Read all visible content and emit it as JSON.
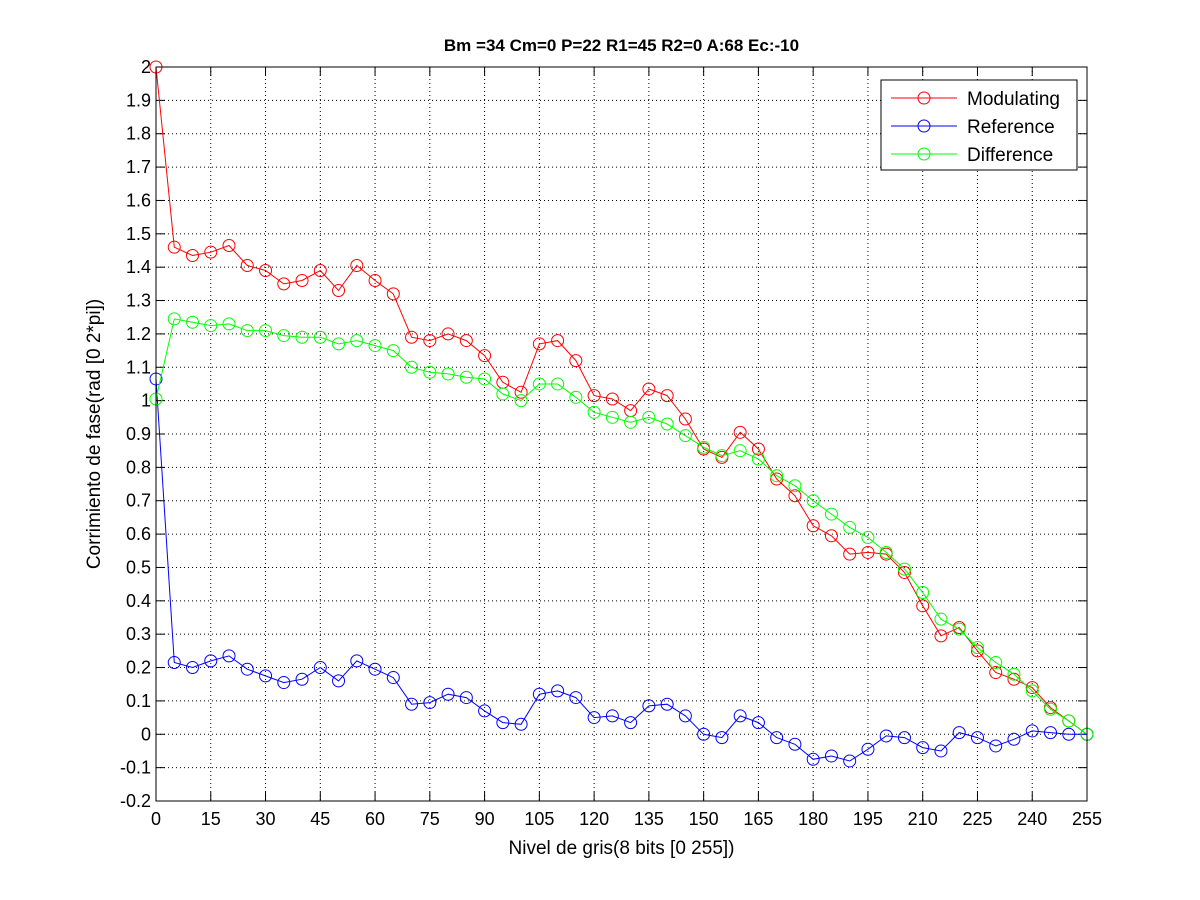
{
  "chart_data": {
    "type": "line",
    "title": "Bm =34  Cm=0  P=22  R1=45  R2=0  A:68  Ec:-10",
    "xlabel": "Nivel de gris(8 bits [0 255])",
    "ylabel": "Corrimiento de fase(rad [0 2*pi])",
    "xlim": [
      0,
      255
    ],
    "ylim": [
      -0.2,
      2
    ],
    "xticks": [
      0,
      15,
      30,
      45,
      60,
      75,
      90,
      105,
      120,
      135,
      150,
      165,
      180,
      195,
      210,
      225,
      240,
      255
    ],
    "yticks": [
      -0.2,
      -0.1,
      0,
      0.1,
      0.2,
      0.3,
      0.4,
      0.5,
      0.6,
      0.7,
      0.8,
      0.9,
      1,
      1.1,
      1.2,
      1.3,
      1.4,
      1.5,
      1.6,
      1.7,
      1.8,
      1.9,
      2
    ],
    "ytick_labels": [
      "-0.2",
      "-0.1",
      "0",
      "0.1",
      "0.2",
      "0.3",
      "0.4",
      "0.5",
      "0.6",
      "0.7",
      "0.8",
      "0.9",
      "1",
      "1.1",
      "1.2",
      "1.3",
      "1.4",
      "1.5",
      "1.6",
      "1.7",
      "1.8",
      "1.9",
      "2"
    ],
    "grid": true,
    "grid_style": "dotted",
    "legend_position": "top-right",
    "marker": "circle",
    "x": [
      0,
      5,
      10,
      15,
      20,
      25,
      30,
      35,
      40,
      45,
      50,
      55,
      60,
      65,
      70,
      75,
      80,
      85,
      90,
      95,
      100,
      105,
      110,
      115,
      120,
      125,
      130,
      135,
      140,
      145,
      150,
      155,
      160,
      165,
      170,
      175,
      180,
      185,
      190,
      195,
      200,
      205,
      210,
      215,
      220,
      225,
      230,
      235,
      240,
      245,
      250,
      255
    ],
    "series": [
      {
        "name": "Modulating",
        "color": "#ff0000",
        "values": [
          2.0,
          1.46,
          1.435,
          1.445,
          1.465,
          1.405,
          1.39,
          1.35,
          1.36,
          1.39,
          1.33,
          1.405,
          1.36,
          1.32,
          1.19,
          1.18,
          1.2,
          1.18,
          1.135,
          1.055,
          1.025,
          1.17,
          1.18,
          1.12,
          1.015,
          1.005,
          0.97,
          1.035,
          1.015,
          0.945,
          0.855,
          0.83,
          0.905,
          0.855,
          0.765,
          0.715,
          0.625,
          0.595,
          0.54,
          0.545,
          0.54,
          0.485,
          0.385,
          0.295,
          0.32,
          0.25,
          0.185,
          0.165,
          0.14,
          0.08,
          0.04,
          0.0
        ]
      },
      {
        "name": "Reference",
        "color": "#0000ff",
        "values": [
          1.065,
          0.215,
          0.2,
          0.22,
          0.235,
          0.195,
          0.175,
          0.155,
          0.165,
          0.2,
          0.16,
          0.22,
          0.195,
          0.17,
          0.09,
          0.095,
          0.12,
          0.11,
          0.07,
          0.035,
          0.03,
          0.12,
          0.13,
          0.11,
          0.05,
          0.055,
          0.035,
          0.085,
          0.09,
          0.055,
          0.0,
          -0.01,
          0.055,
          0.035,
          -0.01,
          -0.03,
          -0.075,
          -0.065,
          -0.08,
          -0.045,
          -0.005,
          -0.01,
          -0.04,
          -0.05,
          0.005,
          -0.01,
          -0.035,
          -0.015,
          0.01,
          0.005,
          0.0,
          0.0
        ]
      },
      {
        "name": "Difference",
        "color": "#00ff00",
        "values": [
          1.005,
          1.245,
          1.235,
          1.225,
          1.23,
          1.21,
          1.21,
          1.195,
          1.19,
          1.19,
          1.17,
          1.18,
          1.165,
          1.15,
          1.1,
          1.085,
          1.08,
          1.07,
          1.065,
          1.02,
          1.0,
          1.05,
          1.05,
          1.01,
          0.965,
          0.95,
          0.935,
          0.95,
          0.93,
          0.895,
          0.86,
          0.835,
          0.85,
          0.825,
          0.775,
          0.745,
          0.7,
          0.66,
          0.62,
          0.59,
          0.545,
          0.495,
          0.425,
          0.345,
          0.315,
          0.26,
          0.215,
          0.18,
          0.13,
          0.075,
          0.04,
          0.0
        ]
      }
    ]
  }
}
